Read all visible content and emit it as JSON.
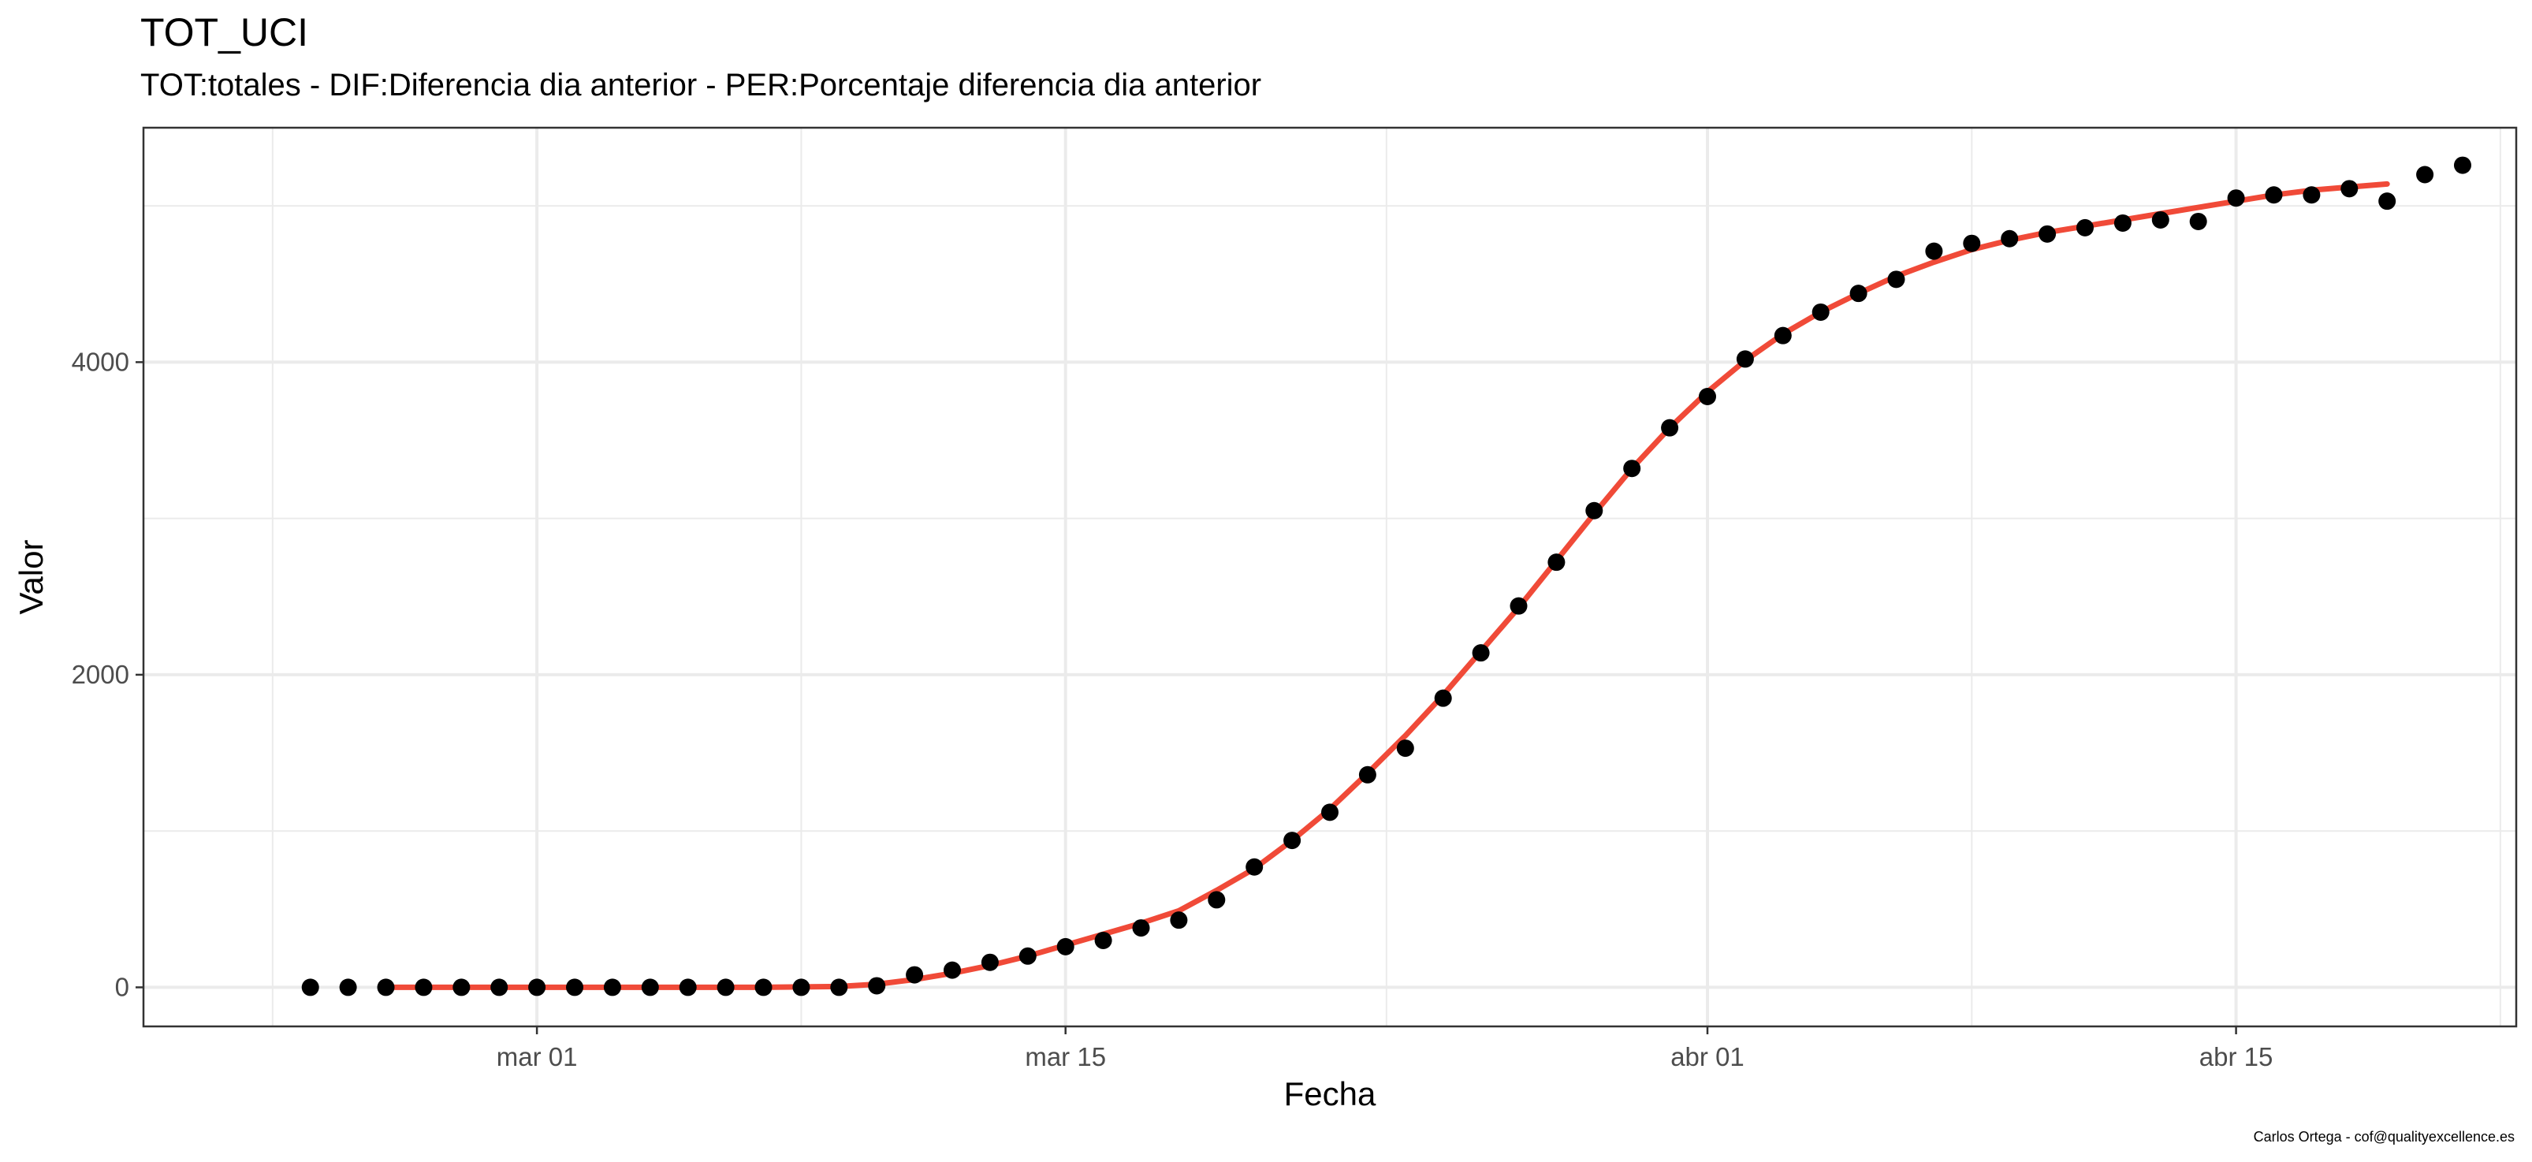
{
  "title": "TOT_UCI",
  "subtitle": "TOT:totales - DIF:Diferencia dia anterior - PER:Porcentaje diferencia dia anterior",
  "caption": "Carlos Ortega - cof@qualityexcellence.es",
  "chart_data": {
    "type": "scatter",
    "title": "TOT_UCI",
    "subtitle": "TOT:totales - DIF:Diferencia dia anterior - PER:Porcentaje diferencia dia anterior",
    "xlabel": "Fecha",
    "ylabel": "Valor",
    "x_ticks": [
      {
        "date": "2020-03-01",
        "label": "mar 01"
      },
      {
        "date": "2020-03-15",
        "label": "mar 15"
      },
      {
        "date": "2020-04-01",
        "label": "abr 01"
      },
      {
        "date": "2020-04-15",
        "label": "abr 15"
      }
    ],
    "y_ticks": [
      0,
      2000,
      4000
    ],
    "xlim": [
      "2020-02-21",
      "2020-04-21"
    ],
    "ylim": [
      -250,
      5500
    ],
    "grid": true,
    "colors": {
      "points": "#000000",
      "line": "#f04a38",
      "grid": "#ebebeb",
      "axis_text": "#4d4d4d",
      "border": "#333333"
    },
    "series": [
      {
        "kind": "points",
        "points": [
          {
            "x": "2020-02-24",
            "y": 0
          },
          {
            "x": "2020-02-25",
            "y": 0
          },
          {
            "x": "2020-02-26",
            "y": 0
          },
          {
            "x": "2020-02-27",
            "y": 0
          },
          {
            "x": "2020-02-28",
            "y": 0
          },
          {
            "x": "2020-02-29",
            "y": 0
          },
          {
            "x": "2020-03-01",
            "y": 0
          },
          {
            "x": "2020-03-02",
            "y": 0
          },
          {
            "x": "2020-03-03",
            "y": 0
          },
          {
            "x": "2020-03-04",
            "y": 0
          },
          {
            "x": "2020-03-05",
            "y": 0
          },
          {
            "x": "2020-03-06",
            "y": 0
          },
          {
            "x": "2020-03-07",
            "y": 0
          },
          {
            "x": "2020-03-08",
            "y": 0
          },
          {
            "x": "2020-03-09",
            "y": 0
          },
          {
            "x": "2020-03-10",
            "y": 10
          },
          {
            "x": "2020-03-11",
            "y": 80
          },
          {
            "x": "2020-03-12",
            "y": 110
          },
          {
            "x": "2020-03-13",
            "y": 160
          },
          {
            "x": "2020-03-14",
            "y": 200
          },
          {
            "x": "2020-03-15",
            "y": 260
          },
          {
            "x": "2020-03-16",
            "y": 300
          },
          {
            "x": "2020-03-17",
            "y": 380
          },
          {
            "x": "2020-03-18",
            "y": 430
          },
          {
            "x": "2020-03-19",
            "y": 560
          },
          {
            "x": "2020-03-20",
            "y": 770
          },
          {
            "x": "2020-03-21",
            "y": 940
          },
          {
            "x": "2020-03-22",
            "y": 1120
          },
          {
            "x": "2020-03-23",
            "y": 1360
          },
          {
            "x": "2020-03-24",
            "y": 1530
          },
          {
            "x": "2020-03-25",
            "y": 1850
          },
          {
            "x": "2020-03-26",
            "y": 2140
          },
          {
            "x": "2020-03-27",
            "y": 2440
          },
          {
            "x": "2020-03-28",
            "y": 2720
          },
          {
            "x": "2020-03-29",
            "y": 3050
          },
          {
            "x": "2020-03-30",
            "y": 3320
          },
          {
            "x": "2020-03-31",
            "y": 3580
          },
          {
            "x": "2020-04-01",
            "y": 3780
          },
          {
            "x": "2020-04-02",
            "y": 4020
          },
          {
            "x": "2020-04-03",
            "y": 4170
          },
          {
            "x": "2020-04-04",
            "y": 4320
          },
          {
            "x": "2020-04-05",
            "y": 4440
          },
          {
            "x": "2020-04-06",
            "y": 4530
          },
          {
            "x": "2020-04-07",
            "y": 4710
          },
          {
            "x": "2020-04-08",
            "y": 4760
          },
          {
            "x": "2020-04-09",
            "y": 4790
          },
          {
            "x": "2020-04-10",
            "y": 4820
          },
          {
            "x": "2020-04-11",
            "y": 4860
          },
          {
            "x": "2020-04-12",
            "y": 4890
          },
          {
            "x": "2020-04-13",
            "y": 4910
          },
          {
            "x": "2020-04-14",
            "y": 4900
          },
          {
            "x": "2020-04-15",
            "y": 5050
          },
          {
            "x": "2020-04-16",
            "y": 5070
          },
          {
            "x": "2020-04-17",
            "y": 5070
          },
          {
            "x": "2020-04-18",
            "y": 5110
          },
          {
            "x": "2020-04-19",
            "y": 5030
          },
          {
            "x": "2020-04-20",
            "y": 5200
          },
          {
            "x": "2020-04-21",
            "y": 5260
          }
        ]
      },
      {
        "kind": "line",
        "points": [
          {
            "x": "2020-02-26",
            "y": 0
          },
          {
            "x": "2020-02-28",
            "y": 0
          },
          {
            "x": "2020-03-01",
            "y": 0
          },
          {
            "x": "2020-03-03",
            "y": 0
          },
          {
            "x": "2020-03-05",
            "y": 0
          },
          {
            "x": "2020-03-07",
            "y": 0
          },
          {
            "x": "2020-03-09",
            "y": 5
          },
          {
            "x": "2020-03-10",
            "y": 20
          },
          {
            "x": "2020-03-11",
            "y": 50
          },
          {
            "x": "2020-03-12",
            "y": 90
          },
          {
            "x": "2020-03-13",
            "y": 140
          },
          {
            "x": "2020-03-14",
            "y": 200
          },
          {
            "x": "2020-03-15",
            "y": 270
          },
          {
            "x": "2020-03-16",
            "y": 340
          },
          {
            "x": "2020-03-17",
            "y": 410
          },
          {
            "x": "2020-03-18",
            "y": 490
          },
          {
            "x": "2020-03-19",
            "y": 620
          },
          {
            "x": "2020-03-20",
            "y": 760
          },
          {
            "x": "2020-03-21",
            "y": 940
          },
          {
            "x": "2020-03-22",
            "y": 1140
          },
          {
            "x": "2020-03-23",
            "y": 1370
          },
          {
            "x": "2020-03-24",
            "y": 1610
          },
          {
            "x": "2020-03-25",
            "y": 1870
          },
          {
            "x": "2020-03-26",
            "y": 2150
          },
          {
            "x": "2020-03-27",
            "y": 2430
          },
          {
            "x": "2020-03-28",
            "y": 2730
          },
          {
            "x": "2020-03-29",
            "y": 3030
          },
          {
            "x": "2020-03-30",
            "y": 3320
          },
          {
            "x": "2020-03-31",
            "y": 3580
          },
          {
            "x": "2020-04-01",
            "y": 3810
          },
          {
            "x": "2020-04-02",
            "y": 4010
          },
          {
            "x": "2020-04-03",
            "y": 4180
          },
          {
            "x": "2020-04-04",
            "y": 4320
          },
          {
            "x": "2020-04-05",
            "y": 4440
          },
          {
            "x": "2020-04-06",
            "y": 4550
          },
          {
            "x": "2020-04-07",
            "y": 4640
          },
          {
            "x": "2020-04-08",
            "y": 4720
          },
          {
            "x": "2020-04-09",
            "y": 4780
          },
          {
            "x": "2020-04-10",
            "y": 4830
          },
          {
            "x": "2020-04-11",
            "y": 4870
          },
          {
            "x": "2020-04-12",
            "y": 4910
          },
          {
            "x": "2020-04-13",
            "y": 4950
          },
          {
            "x": "2020-04-14",
            "y": 4990
          },
          {
            "x": "2020-04-15",
            "y": 5030
          },
          {
            "x": "2020-04-16",
            "y": 5070
          },
          {
            "x": "2020-04-17",
            "y": 5100
          },
          {
            "x": "2020-04-18",
            "y": 5120
          },
          {
            "x": "2020-04-19",
            "y": 5140
          }
        ]
      }
    ]
  }
}
